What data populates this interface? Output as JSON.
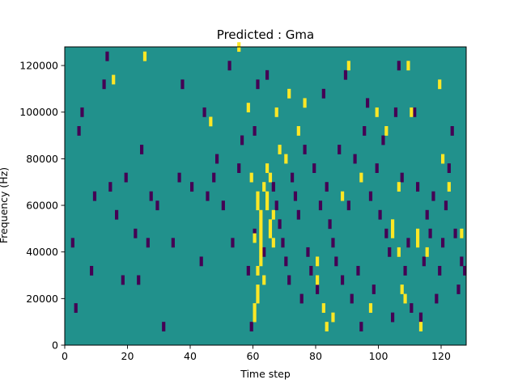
{
  "chart_data": {
    "type": "heatmap",
    "title": "Predicted : Gma",
    "xlabel": "Time step",
    "ylabel": "Frequency (Hz)",
    "xlim": [
      0,
      128
    ],
    "ylim": [
      0,
      128000
    ],
    "xticks": [
      0,
      20,
      40,
      60,
      80,
      100,
      120
    ],
    "yticks": [
      0,
      20000,
      40000,
      60000,
      80000,
      100000,
      120000
    ],
    "cell_height_hz": 4000,
    "colors": {
      "background": "#21918c",
      "high": "#fde725",
      "low": "#440154"
    },
    "levels": {
      "background": 0,
      "high": 1,
      "low": -1
    },
    "cells_high": [
      [
        15,
        112
      ],
      [
        25,
        122
      ],
      [
        46,
        94
      ],
      [
        55,
        126
      ],
      [
        58,
        100
      ],
      [
        59,
        70
      ],
      [
        60,
        44
      ],
      [
        61,
        30
      ],
      [
        61,
        22
      ],
      [
        61,
        18
      ],
      [
        60,
        14
      ],
      [
        60,
        10
      ],
      [
        61,
        62
      ],
      [
        61,
        58
      ],
      [
        62,
        54
      ],
      [
        62,
        50
      ],
      [
        62,
        46
      ],
      [
        62,
        42
      ],
      [
        62,
        38
      ],
      [
        62,
        34
      ],
      [
        63,
        66
      ],
      [
        63,
        26
      ],
      [
        64,
        74
      ],
      [
        64,
        62
      ],
      [
        64,
        58
      ],
      [
        65,
        70
      ],
      [
        65,
        50
      ],
      [
        65,
        46
      ],
      [
        66,
        54
      ],
      [
        66,
        42
      ],
      [
        67,
        98
      ],
      [
        68,
        82
      ],
      [
        70,
        78
      ],
      [
        71,
        106
      ],
      [
        74,
        90
      ],
      [
        76,
        102
      ],
      [
        80,
        34
      ],
      [
        80,
        26
      ],
      [
        82,
        14
      ],
      [
        83,
        6
      ],
      [
        85,
        10
      ],
      [
        88,
        62
      ],
      [
        90,
        118
      ],
      [
        94,
        70
      ],
      [
        97,
        14
      ],
      [
        99,
        98
      ],
      [
        102,
        90
      ],
      [
        104,
        50
      ],
      [
        104,
        46
      ],
      [
        106,
        66
      ],
      [
        106,
        38
      ],
      [
        107,
        22
      ],
      [
        108,
        18
      ],
      [
        109,
        118
      ],
      [
        110,
        98
      ],
      [
        112,
        46
      ],
      [
        112,
        42
      ],
      [
        113,
        6
      ],
      [
        115,
        38
      ],
      [
        119,
        110
      ],
      [
        120,
        78
      ],
      [
        122,
        66
      ],
      [
        126,
        46
      ]
    ],
    "cells_low": [
      [
        2,
        42
      ],
      [
        3,
        14
      ],
      [
        4,
        90
      ],
      [
        5,
        98
      ],
      [
        8,
        30
      ],
      [
        9,
        62
      ],
      [
        12,
        110
      ],
      [
        13,
        122
      ],
      [
        14,
        66
      ],
      [
        16,
        54
      ],
      [
        18,
        26
      ],
      [
        19,
        70
      ],
      [
        22,
        46
      ],
      [
        23,
        26
      ],
      [
        24,
        82
      ],
      [
        26,
        42
      ],
      [
        27,
        62
      ],
      [
        29,
        58
      ],
      [
        31,
        6
      ],
      [
        34,
        42
      ],
      [
        36,
        70
      ],
      [
        37,
        110
      ],
      [
        40,
        66
      ],
      [
        43,
        34
      ],
      [
        44,
        98
      ],
      [
        45,
        62
      ],
      [
        47,
        70
      ],
      [
        48,
        78
      ],
      [
        50,
        58
      ],
      [
        52,
        118
      ],
      [
        53,
        42
      ],
      [
        55,
        74
      ],
      [
        56,
        86
      ],
      [
        58,
        30
      ],
      [
        59,
        6
      ],
      [
        60,
        90
      ],
      [
        60,
        46
      ],
      [
        61,
        110
      ],
      [
        63,
        38
      ],
      [
        64,
        114
      ],
      [
        66,
        66
      ],
      [
        67,
        58
      ],
      [
        68,
        50
      ],
      [
        69,
        42
      ],
      [
        70,
        34
      ],
      [
        71,
        26
      ],
      [
        72,
        70
      ],
      [
        73,
        62
      ],
      [
        74,
        54
      ],
      [
        75,
        18
      ],
      [
        76,
        82
      ],
      [
        77,
        38
      ],
      [
        78,
        30
      ],
      [
        79,
        74
      ],
      [
        80,
        22
      ],
      [
        81,
        58
      ],
      [
        82,
        106
      ],
      [
        83,
        66
      ],
      [
        84,
        50
      ],
      [
        85,
        42
      ],
      [
        86,
        34
      ],
      [
        87,
        82
      ],
      [
        88,
        26
      ],
      [
        89,
        114
      ],
      [
        90,
        58
      ],
      [
        91,
        18
      ],
      [
        92,
        78
      ],
      [
        93,
        30
      ],
      [
        94,
        6
      ],
      [
        95,
        90
      ],
      [
        96,
        102
      ],
      [
        97,
        62
      ],
      [
        98,
        22
      ],
      [
        99,
        74
      ],
      [
        100,
        54
      ],
      [
        101,
        86
      ],
      [
        102,
        46
      ],
      [
        103,
        38
      ],
      [
        104,
        10
      ],
      [
        105,
        98
      ],
      [
        106,
        118
      ],
      [
        107,
        70
      ],
      [
        108,
        30
      ],
      [
        109,
        42
      ],
      [
        110,
        14
      ],
      [
        111,
        98
      ],
      [
        112,
        66
      ],
      [
        113,
        10
      ],
      [
        114,
        34
      ],
      [
        115,
        54
      ],
      [
        116,
        46
      ],
      [
        117,
        62
      ],
      [
        118,
        18
      ],
      [
        119,
        30
      ],
      [
        120,
        42
      ],
      [
        121,
        58
      ],
      [
        122,
        74
      ],
      [
        123,
        90
      ],
      [
        124,
        46
      ],
      [
        125,
        22
      ],
      [
        126,
        34
      ],
      [
        127,
        30
      ]
    ]
  }
}
